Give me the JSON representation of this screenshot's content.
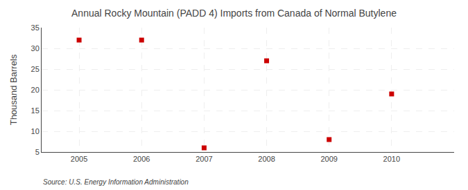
{
  "chart_data": {
    "type": "scatter",
    "title": "Annual Rocky Mountain (PADD 4) Imports from Canada of Normal Butylene",
    "ylabel": "Thousand Barrels",
    "source": "Source: U.S. Energy Information Administration",
    "x": [
      2005,
      2006,
      2007,
      2008,
      2009,
      2010
    ],
    "values": [
      32,
      32,
      6,
      27,
      8,
      19
    ],
    "color": "#cc0000",
    "marker": "square",
    "xlim": [
      2004.4,
      2011.0
    ],
    "xticks": [
      2005,
      2006,
      2007,
      2008,
      2009,
      2010
    ],
    "ylim": [
      5,
      35
    ],
    "yticks": [
      5,
      10,
      15,
      20,
      25,
      30,
      35
    ],
    "grid": true
  }
}
